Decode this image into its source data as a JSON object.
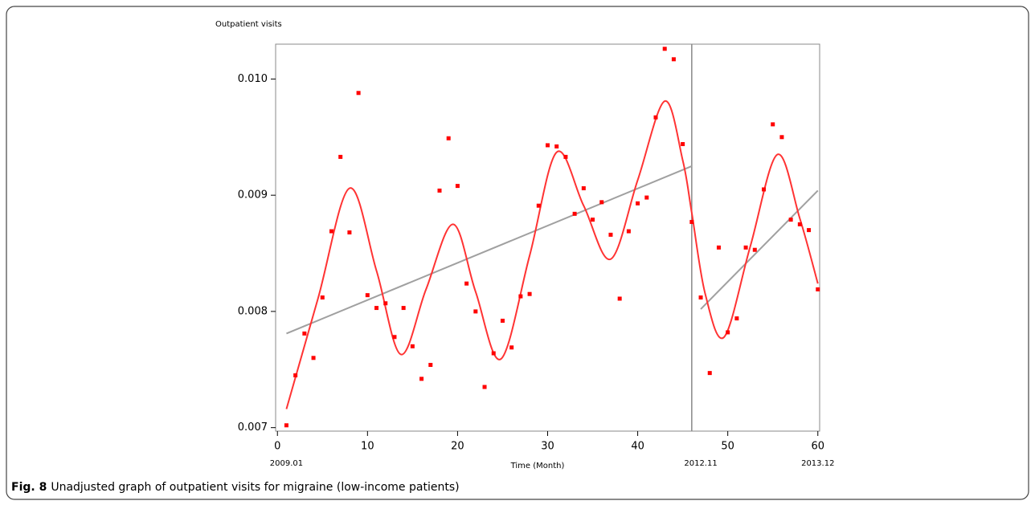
{
  "chart_data": {
    "type": "scatter",
    "y_label": "Outpatient  visits",
    "x_label": "Time (Month)",
    "caption_label": "Fig. 8",
    "caption": "Unadjusted graph of outpatient visits for migraine (low-income patients)",
    "xlim": [
      -0.2,
      60.2
    ],
    "xticks": [
      0,
      10,
      20,
      30,
      40,
      50,
      60
    ],
    "ylim": [
      0.00697,
      0.0103
    ],
    "yticks": [
      0.007,
      0.008,
      0.009,
      {
        "value": 0.01,
        "label": "0.010"
      }
    ],
    "date_labels": [
      {
        "value": 1,
        "label": "2009.01"
      },
      {
        "value": 47,
        "label": "2012.11"
      },
      {
        "value": 60,
        "label": "2013.12"
      }
    ],
    "intervention_x": 46,
    "points": {
      "color": "#ff0000",
      "x": [
        1,
        2,
        3,
        4,
        5,
        6,
        7,
        8,
        9,
        10,
        11,
        12,
        13,
        14,
        15,
        16,
        17,
        18,
        19,
        20,
        21,
        22,
        23,
        24,
        25,
        26,
        27,
        28,
        29,
        30,
        31,
        32,
        33,
        34,
        35,
        36,
        37,
        38,
        39,
        40,
        41,
        42,
        43,
        44,
        45,
        46,
        47,
        48,
        49,
        50,
        51,
        52,
        53,
        54,
        55,
        56,
        57,
        58,
        59,
        60
      ],
      "values": [
        0.00702,
        0.00745,
        0.00781,
        0.0076,
        0.00812,
        0.00869,
        0.00933,
        0.00868,
        0.00988,
        0.00814,
        0.00803,
        0.00807,
        0.00778,
        0.00803,
        0.0077,
        0.00742,
        0.00754,
        0.00904,
        0.00949,
        0.00908,
        0.00824,
        0.008,
        0.00735,
        0.00764,
        0.00792,
        0.00769,
        0.00813,
        0.00815,
        0.00891,
        0.00943,
        0.00942,
        0.00933,
        0.00884,
        0.00906,
        0.00879,
        0.00894,
        0.00866,
        0.00811,
        0.00869,
        0.00893,
        0.00898,
        0.00967,
        0.01026,
        0.01017,
        0.00944,
        0.00877,
        0.00812,
        0.00747,
        0.00855,
        0.00782,
        0.00794,
        0.00855,
        0.00853,
        0.00905,
        0.00961,
        0.0095,
        0.00879,
        0.00875,
        0.0087,
        0.00819
      ]
    },
    "fit_curve": {
      "color": "#ff3333",
      "x": [
        1,
        4.5,
        8,
        11,
        13.7,
        16.5,
        19.5,
        22,
        24.8,
        28,
        31,
        34,
        37,
        40,
        43,
        45,
        46,
        47.5,
        49.6,
        52.5,
        55.5,
        58,
        60
      ],
      "values": [
        0.00716,
        0.00811,
        0.00906,
        0.00835,
        0.00763,
        0.00819,
        0.00875,
        0.00817,
        0.00759,
        0.00848,
        0.00937,
        0.00891,
        0.00845,
        0.00913,
        0.00981,
        0.0093,
        0.00885,
        0.00815,
        0.00778,
        0.00856,
        0.00935,
        0.0088,
        0.00824
      ]
    },
    "trend_lines": [
      {
        "color": "#a0a0a0",
        "x": [
          1,
          46
        ],
        "values": [
          0.00781,
          0.00925
        ]
      },
      {
        "color": "#a0a0a0",
        "x": [
          47,
          60
        ],
        "values": [
          0.00802,
          0.00904
        ]
      }
    ]
  }
}
